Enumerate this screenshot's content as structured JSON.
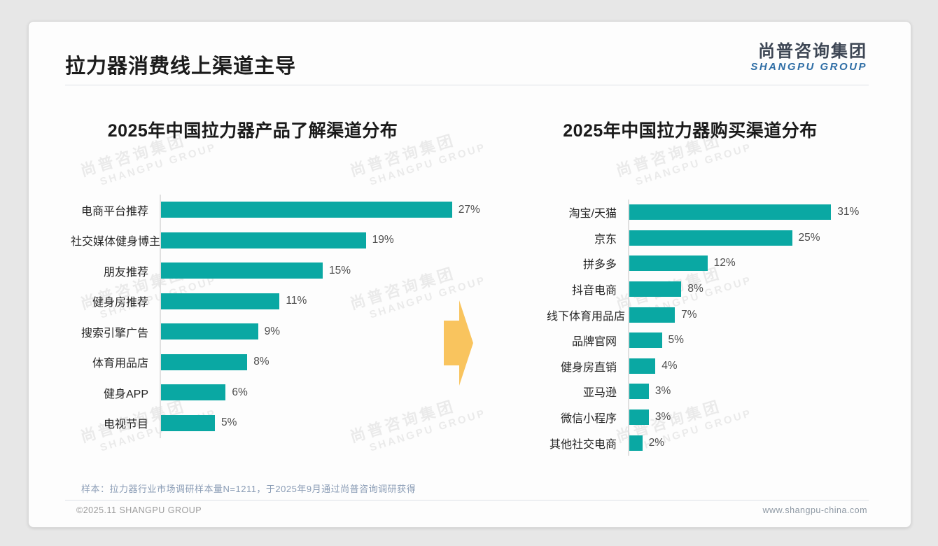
{
  "page": {
    "title": "拉力器消费线上渠道主导",
    "footnote": "样本：拉力器行业市场调研样本量N=1211，于2025年9月通过尚普咨询调研获得",
    "footer_left": "©2025.11 SHANGPU GROUP",
    "footer_right": "www.shangpu-china.com"
  },
  "brand": {
    "logo_cn": "尚普咨询集团",
    "logo_en": "SHANGPU GROUP",
    "watermark_cn": "尚普咨询集团",
    "watermark_en": "SHANGPU GROUP"
  },
  "colors": {
    "bar": "#0aa8a3",
    "arrow": "#f9c45e",
    "logo_cn": "#3d4654",
    "logo_en": "#2e6da5"
  },
  "chart_data": [
    {
      "type": "bar",
      "orientation": "horizontal",
      "title": "2025年中国拉力器产品了解渠道分布",
      "categories": [
        "电商平台推荐",
        "社交媒体健身博主",
        "朋友推荐",
        "健身房推荐",
        "搜索引擎广告",
        "体育用品店",
        "健身APP",
        "电视节目"
      ],
      "values": [
        27,
        19,
        15,
        11,
        9,
        8,
        6,
        5
      ],
      "unit": "%",
      "xlim": [
        0,
        30
      ],
      "grid": false,
      "legend": false
    },
    {
      "type": "bar",
      "orientation": "horizontal",
      "title": "2025年中国拉力器购买渠道分布",
      "categories": [
        "淘宝/天猫",
        "京东",
        "拼多多",
        "抖音电商",
        "线下体育用品店",
        "品牌官网",
        "健身房直销",
        "亚马逊",
        "微信小程序",
        "其他社交电商"
      ],
      "values": [
        31,
        25,
        12,
        8,
        7,
        5,
        4,
        3,
        3,
        2
      ],
      "unit": "%",
      "xlim": [
        0,
        35
      ],
      "grid": false,
      "legend": false
    }
  ]
}
